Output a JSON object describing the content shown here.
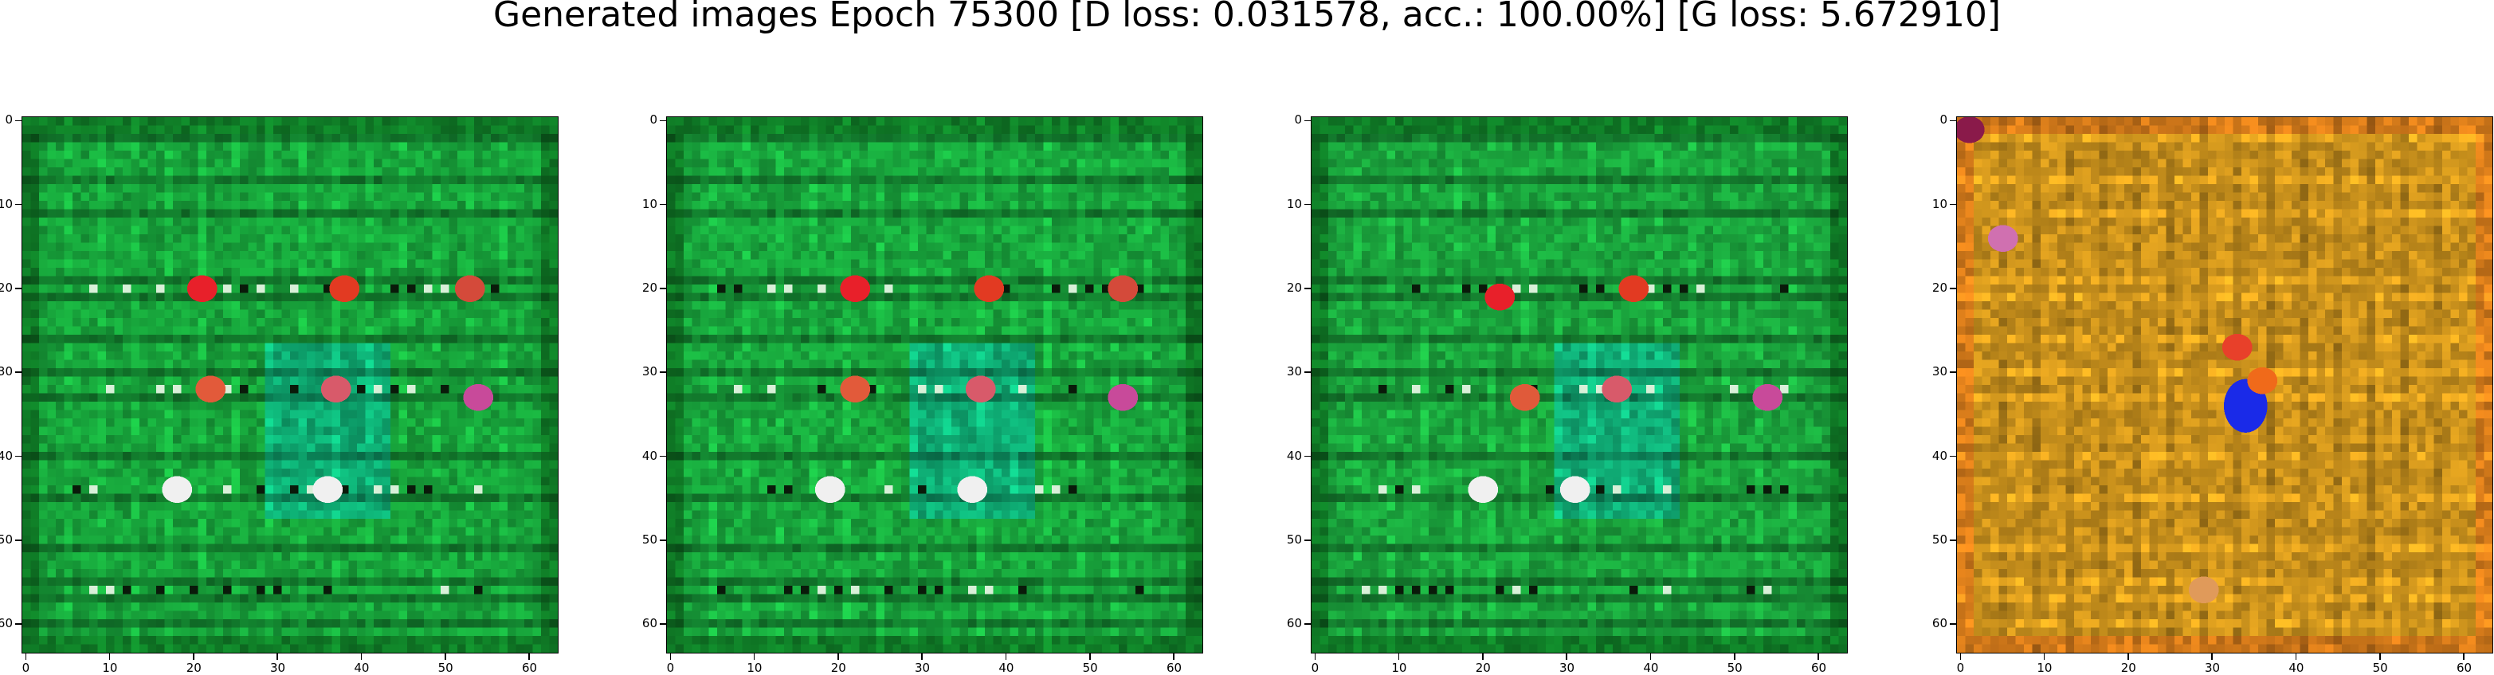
{
  "title": "Generated images Epoch 75300 [D loss: 0.031578, acc.: 100.00%] [G loss: 5.672910]",
  "chart_data": [
    {
      "type": "heatmap",
      "xlim": [
        -0.5,
        63.5
      ],
      "ylim": [
        63.5,
        -0.5
      ],
      "xticks": [
        "0",
        "10",
        "20",
        "30",
        "40",
        "50",
        "60"
      ],
      "yticks": [
        "0",
        "10",
        "20",
        "30",
        "40",
        "50",
        "60"
      ],
      "palette": "green",
      "base_color": "#17a13a",
      "border_color": "#0f7a26",
      "highlights": [
        {
          "x": 21,
          "y": 20,
          "color": "#e8202a"
        },
        {
          "x": 38,
          "y": 20,
          "color": "#e23a22"
        },
        {
          "x": 53,
          "y": 20,
          "color": "#d44a3a"
        },
        {
          "x": 22,
          "y": 32,
          "color": "#e25a3a"
        },
        {
          "x": 37,
          "y": 32,
          "color": "#d85a6a"
        },
        {
          "x": 54,
          "y": 33,
          "color": "#c84a9a"
        },
        {
          "x": 18,
          "y": 44,
          "color": "#f0f0f0"
        },
        {
          "x": 36,
          "y": 44,
          "color": "#f0f0f0"
        }
      ]
    },
    {
      "type": "heatmap",
      "xlim": [
        -0.5,
        63.5
      ],
      "ylim": [
        63.5,
        -0.5
      ],
      "xticks": [
        "0",
        "10",
        "20",
        "30",
        "40",
        "50",
        "60"
      ],
      "yticks": [
        "0",
        "10",
        "20",
        "30",
        "40",
        "50",
        "60"
      ],
      "palette": "green",
      "base_color": "#18a43c",
      "border_color": "#0f7a26",
      "highlights": [
        {
          "x": 22,
          "y": 20,
          "color": "#e8202a"
        },
        {
          "x": 38,
          "y": 20,
          "color": "#e23a22"
        },
        {
          "x": 54,
          "y": 20,
          "color": "#d44a3a"
        },
        {
          "x": 22,
          "y": 32,
          "color": "#e25a3a"
        },
        {
          "x": 37,
          "y": 32,
          "color": "#d85a6a"
        },
        {
          "x": 54,
          "y": 33,
          "color": "#c84a9a"
        },
        {
          "x": 19,
          "y": 44,
          "color": "#f0f0f0"
        },
        {
          "x": 36,
          "y": 44,
          "color": "#f0f0f0"
        }
      ]
    },
    {
      "type": "heatmap",
      "xlim": [
        -0.5,
        63.5
      ],
      "ylim": [
        63.5,
        -0.5
      ],
      "xticks": [
        "0",
        "10",
        "20",
        "30",
        "40",
        "50",
        "60"
      ],
      "yticks": [
        "0",
        "10",
        "20",
        "30",
        "40",
        "50",
        "60"
      ],
      "palette": "green",
      "base_color": "#1aa23c",
      "border_color": "#0f7a26",
      "highlights": [
        {
          "x": 22,
          "y": 21,
          "color": "#e8202a"
        },
        {
          "x": 38,
          "y": 20,
          "color": "#e23a22"
        },
        {
          "x": 36,
          "y": 32,
          "color": "#d85a6a"
        },
        {
          "x": 54,
          "y": 33,
          "color": "#c84a9a"
        },
        {
          "x": 25,
          "y": 33,
          "color": "#e05a3a"
        },
        {
          "x": 20,
          "y": 44,
          "color": "#f0f0f0"
        },
        {
          "x": 31,
          "y": 44,
          "color": "#f0f0f0"
        }
      ]
    },
    {
      "type": "heatmap",
      "xlim": [
        -0.5,
        63.5
      ],
      "ylim": [
        63.5,
        -0.5
      ],
      "xticks": [
        "0",
        "10",
        "20",
        "30",
        "40",
        "50",
        "60"
      ],
      "yticks": [
        "0",
        "10",
        "20",
        "30",
        "40",
        "50",
        "60"
      ],
      "palette": "orange",
      "base_color": "#c8901c",
      "border_color": "#d47a1a",
      "highlights": [
        {
          "x": 34,
          "y": 34,
          "color": "#1a2ae8"
        },
        {
          "x": 33,
          "y": 27,
          "color": "#e8402a"
        },
        {
          "x": 36,
          "y": 31,
          "color": "#f06a1a"
        },
        {
          "x": 29,
          "y": 56,
          "color": "#e09a5a"
        },
        {
          "x": 1,
          "y": 1,
          "color": "#8a1a4a"
        },
        {
          "x": 5,
          "y": 14,
          "color": "#d070b0"
        }
      ]
    }
  ]
}
